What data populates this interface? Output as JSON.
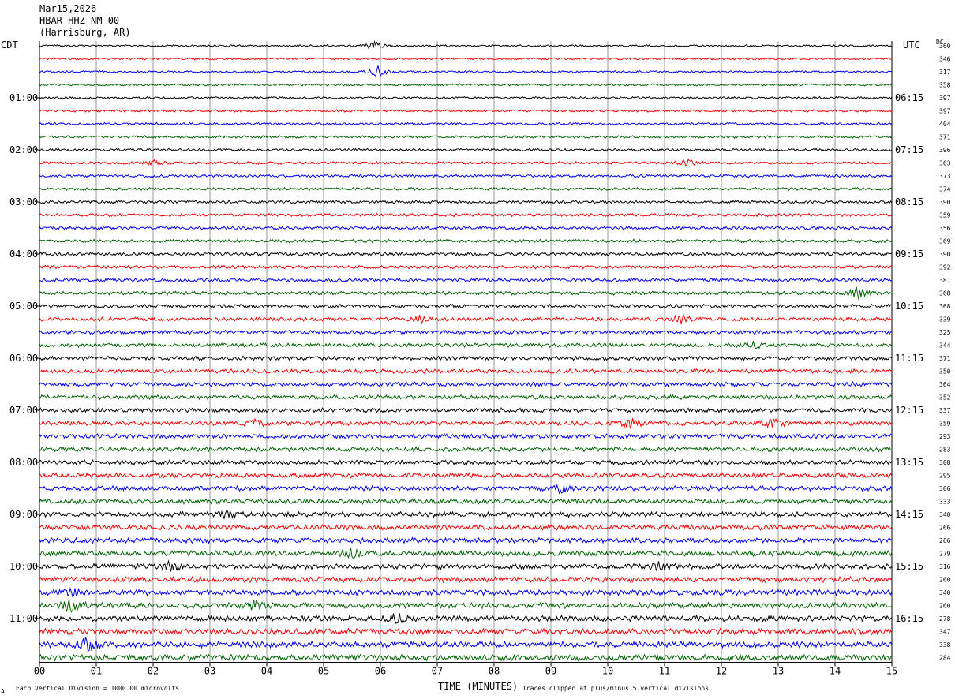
{
  "header": {
    "date": "Mar15,2026",
    "station": "HBAR HHZ NM 00",
    "location": "(Harrisburg, AR)"
  },
  "left_tz": "CDT",
  "right_tz": "UTC",
  "dc_label": "DC",
  "footer": {
    "scale": "Each Vertical Division = 1000.00 microvolts",
    "xlabel": "TIME (MINUTES)",
    "clip": "Traces clipped at plus/minus 5 vertical divisions",
    "corner": "A"
  },
  "colors": [
    "#000000",
    "#ff0000",
    "#0000ff",
    "#006400"
  ],
  "chart_data": {
    "type": "line",
    "title": "",
    "xlabel": "TIME (MINUTES)",
    "xlim": [
      0,
      15
    ],
    "x_ticks": [
      "00",
      "01",
      "02",
      "03",
      "04",
      "05",
      "06",
      "07",
      "08",
      "09",
      "10",
      "11",
      "12",
      "13",
      "14",
      "15"
    ],
    "left_hour_labels": [
      "01:00",
      "02:00",
      "03:00",
      "04:00",
      "05:00",
      "06:00",
      "07:00",
      "08:00",
      "09:00",
      "10:00",
      "11:00"
    ],
    "right_hour_labels": [
      "06:15",
      "07:15",
      "08:15",
      "09:15",
      "10:15",
      "11:15",
      "12:15",
      "13:15",
      "14:15",
      "15:15",
      "16:15"
    ],
    "hour_label_every_traces": 4,
    "trace_count": 48,
    "dc_offsets": [
      "360",
      "346",
      "317",
      "358",
      "397",
      "397",
      "404",
      "371",
      "396",
      "363",
      "373",
      "374",
      "390",
      "359",
      "356",
      "369",
      "390",
      "392",
      "381",
      "368",
      "368",
      "339",
      "325",
      "344",
      "371",
      "350",
      "364",
      "352",
      "337",
      "359",
      "293",
      "283",
      "308",
      "295",
      "306",
      "333",
      "340",
      "266",
      "266",
      "279",
      "316",
      "260",
      "340",
      "260",
      "278",
      "347",
      "338",
      "284"
    ],
    "events": [
      {
        "trace": 0,
        "minute": 5.9,
        "amp": 5
      },
      {
        "trace": 2,
        "minute": 5.95,
        "amp": 7
      },
      {
        "trace": 9,
        "minute": 2.0,
        "amp": 3
      },
      {
        "trace": 9,
        "minute": 11.4,
        "amp": 4
      },
      {
        "trace": 19,
        "minute": 14.4,
        "amp": 8
      },
      {
        "trace": 21,
        "minute": 6.7,
        "amp": 4
      },
      {
        "trace": 21,
        "minute": 11.3,
        "amp": 5
      },
      {
        "trace": 23,
        "minute": 12.6,
        "amp": 4
      },
      {
        "trace": 29,
        "minute": 3.8,
        "amp": 4
      },
      {
        "trace": 29,
        "minute": 10.4,
        "amp": 6
      },
      {
        "trace": 29,
        "minute": 12.9,
        "amp": 6
      },
      {
        "trace": 34,
        "minute": 9.2,
        "amp": 5
      },
      {
        "trace": 36,
        "minute": 3.3,
        "amp": 4
      },
      {
        "trace": 39,
        "minute": 5.5,
        "amp": 6
      },
      {
        "trace": 40,
        "minute": 2.3,
        "amp": 5
      },
      {
        "trace": 40,
        "minute": 10.9,
        "amp": 5
      },
      {
        "trace": 42,
        "minute": 0.6,
        "amp": 5
      },
      {
        "trace": 43,
        "minute": 0.55,
        "amp": 8
      },
      {
        "trace": 43,
        "minute": 3.8,
        "amp": 5
      },
      {
        "trace": 44,
        "minute": 6.3,
        "amp": 6
      },
      {
        "trace": 46,
        "minute": 0.85,
        "amp": 9
      }
    ]
  }
}
